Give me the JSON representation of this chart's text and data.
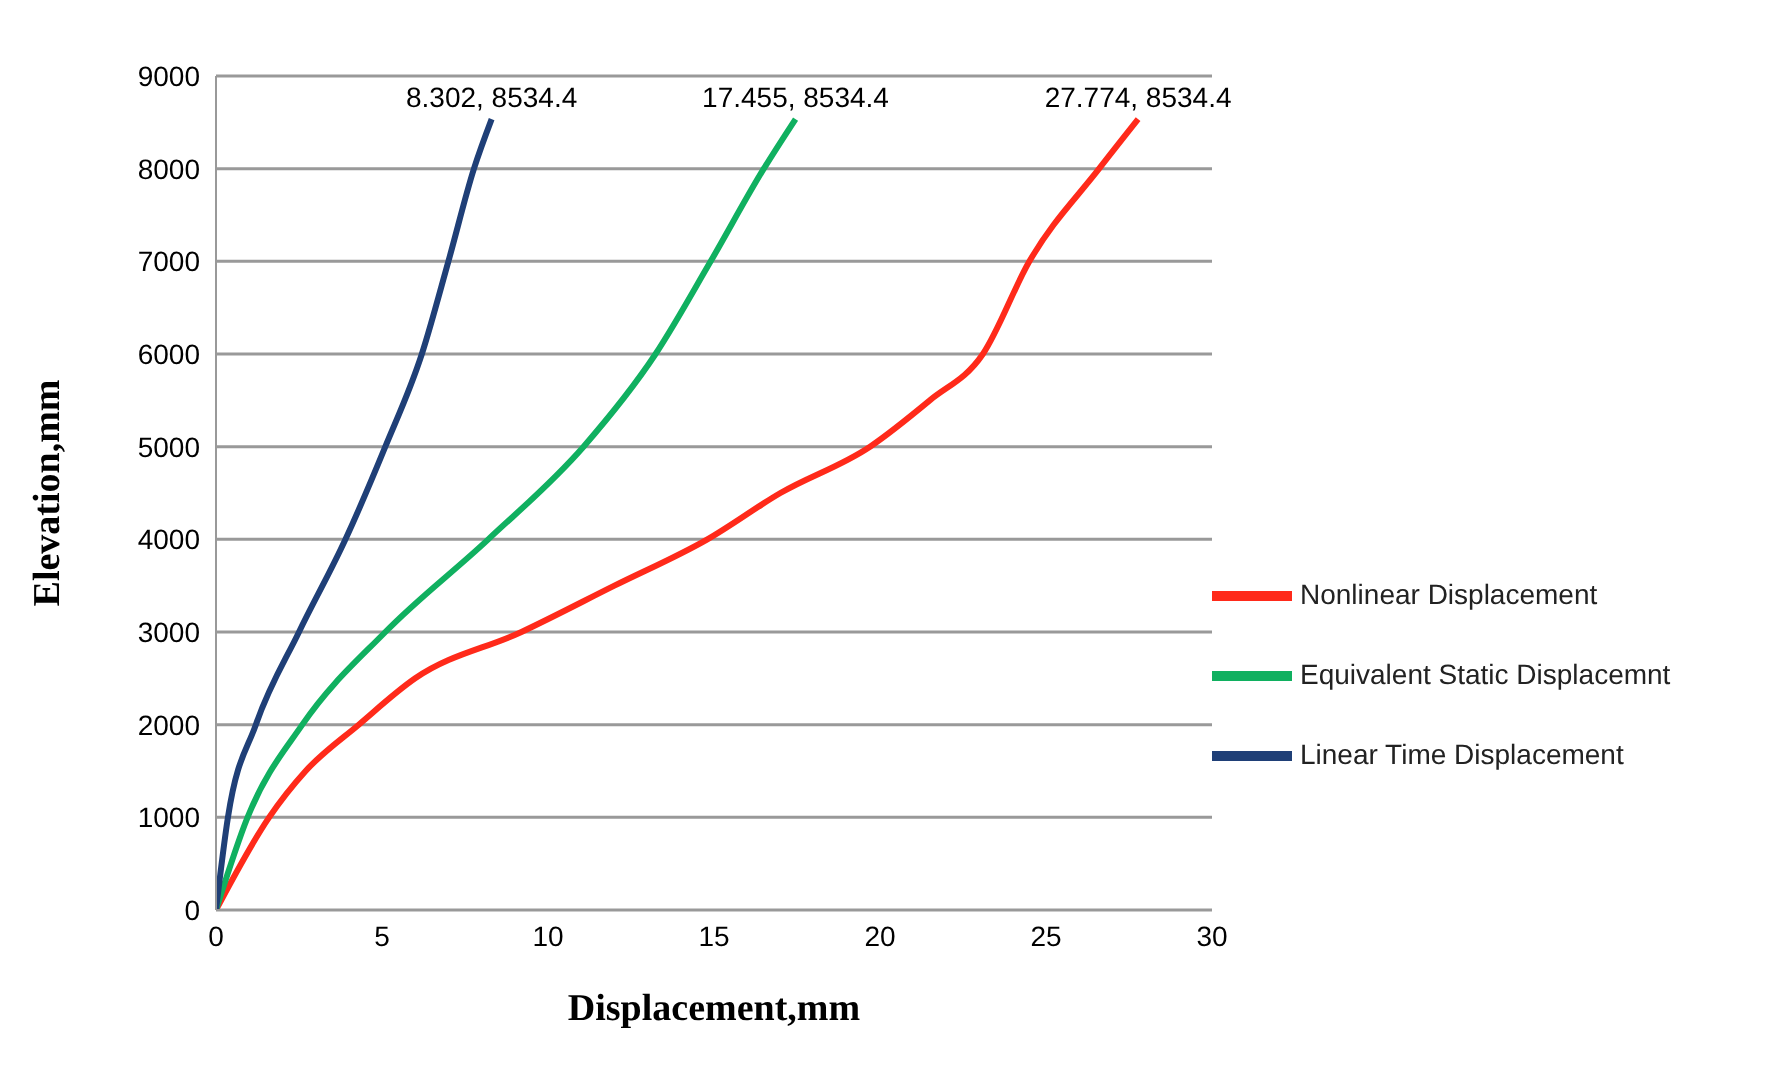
{
  "chart_data": {
    "type": "line",
    "xlabel": "Displacement,mm",
    "ylabel": "Elevation,mm",
    "xlim": [
      0,
      30
    ],
    "xticks": [
      0,
      5,
      10,
      15,
      20,
      25,
      30
    ],
    "ylim": [
      0,
      9000
    ],
    "yticks": [
      0,
      1000,
      2000,
      3000,
      4000,
      5000,
      6000,
      7000,
      8000,
      9000
    ],
    "grid": "y",
    "legend": "right",
    "marker": "none",
    "line_style": "solid",
    "series": [
      {
        "name": "Nonlinear Displacement",
        "color": "#ff2a1a",
        "x": [
          0,
          1.6,
          2.7,
          4.3,
          6,
          9.2,
          12,
          14.8,
          17,
          19.7,
          21.5,
          23.1,
          24.5,
          26.6,
          27.774
        ],
        "values": [
          0,
          1000,
          1500,
          2000,
          2500,
          3000,
          3500,
          4000,
          4500,
          5000,
          5500,
          6000,
          7000,
          8000,
          8534.4
        ]
      },
      {
        "name": "Equivalent Static Displacemnt",
        "color": "#10b060",
        "x": [
          0,
          0.95,
          2.6,
          5.1,
          8.2,
          11.07,
          13.24,
          14.9,
          16.5,
          17.455
        ],
        "values": [
          0,
          1000,
          2000,
          3000,
          4000,
          5000,
          6000,
          7000,
          8000,
          8534.4
        ]
      },
      {
        "name": "Linear Time Displacement",
        "color": "#1f3f77",
        "x": [
          0,
          0.36,
          1.2,
          2.5,
          3.9,
          5.1,
          6.2,
          7,
          7.77,
          8.302
        ],
        "values": [
          0,
          1000,
          2000,
          3000,
          4000,
          5000,
          6000,
          7000,
          8000,
          8534.4
        ]
      }
    ],
    "annotations": [
      {
        "text": "8.302, 8534.4",
        "x": 8.302,
        "y": 8534.4
      },
      {
        "text": "17.455, 8534.4",
        "x": 17.455,
        "y": 8534.4
      },
      {
        "text": "27.774, 8534.4",
        "x": 27.774,
        "y": 8534.4
      }
    ]
  }
}
